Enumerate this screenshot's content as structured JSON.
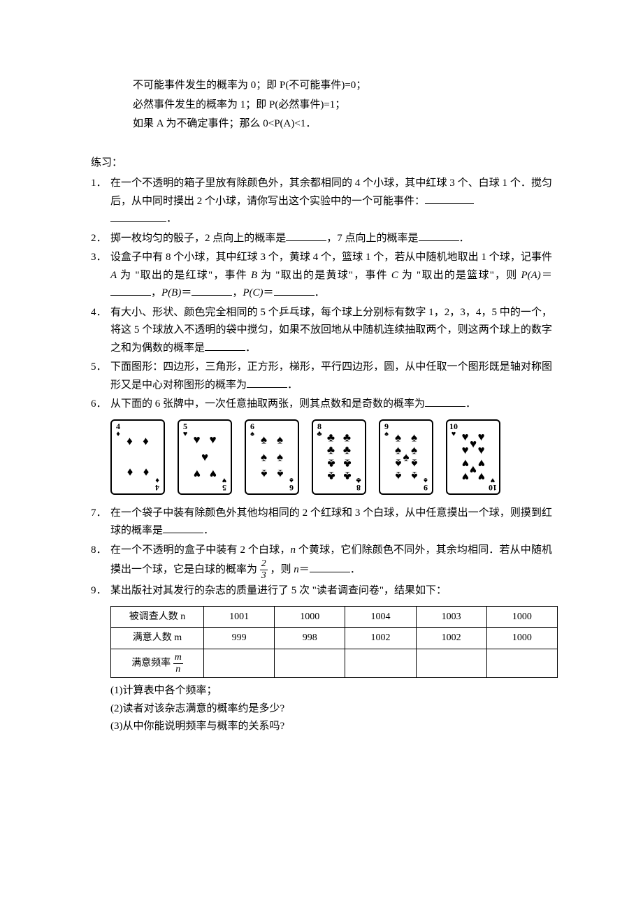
{
  "intro": {
    "line1": "不可能事件发生的概率为 0；即 P(不可能事件)=0；",
    "line2": "必然事件发生的概率为 1；即 P(必然事件)=1；",
    "line3": "如果 A 为不确定事件；那么 0<P(A)<1．"
  },
  "section_label": "练习：",
  "q1a": "在一个不透明的箱子里放有除颜色外，其余都相同的 4 个小球，其中红球 3 个、白球 1 个．搅匀后，从中同时摸出 2 个小球，请你写出这个实验中的一个可能事件：",
  "q1b": "．",
  "q2a": "掷一枚均匀的骰子，2 点向上的概率是",
  "q2b": "，7 点向上的概率是",
  "q2c": "．",
  "q3a": "设盒子中有 8 个小球，其中红球 3 个，黄球 4 个，篮球 1 个，若从中随机地取出 1 个球，记事件 ",
  "q3a_A": "A",
  "q3a2": " 为 \"取出的是红球\"，事件 ",
  "q3a_B": "B",
  "q3a3": " 为 \"取出的是黄球\"，事件 ",
  "q3a_C": "C",
  "q3a4": " 为 \"取出的是篮球\"，则 ",
  "q3_PA": "P(A)",
  "q3_eq": "＝",
  "q3_comma": "，",
  "q3_PB": "P(B)",
  "q3_PC": "P(C)",
  "q3_end": "．",
  "q4a": "有大小、形状、颜色完全相同的 5 个乒乓球，每个球上分别标有数字 1，2，3，4，5 中的一个，将这 5 个球放入不透明的袋中搅匀，如果不放回地从中随机连续抽取两个，则这两个球上的数字之和为偶数的概率是",
  "q4b": "．",
  "q5a": "下面图形：四边形，三角形，正方形，梯形，平行四边形，圆，从中任取一个图形既是轴对称图形又是中心对称图形的概率为",
  "q5b": "．",
  "q6a": "从下面的 6 张牌中，一次任意抽取两张，则其点数和是奇数的概率为",
  "q6b": "．",
  "cards": [
    {
      "value": "4",
      "suit": "♦"
    },
    {
      "value": "5",
      "suit": "♥"
    },
    {
      "value": "6",
      "suit": "♠"
    },
    {
      "value": "8",
      "suit": "♣"
    },
    {
      "value": "9",
      "suit": "♠"
    },
    {
      "value": "10",
      "suit": "♥"
    }
  ],
  "q7a": "在一个袋子中装有除颜色外其他均相同的 2 个红球和 3 个白球，从中任意摸出一个球，则摸到红球的概率是",
  "q7b": "．",
  "q8a": "在一个不透明的盒子中装有 2 个白球，",
  "q8_n": "n",
  "q8a2": " 个黄球，它们除颜色不同外，其余均相同．若从中随机摸出一个球，它是白球的概率为 ",
  "q8_frac_n": "2",
  "q8_frac_d": "3",
  "q8a3": " ，则 ",
  "q8_n2": "n",
  "q8a4": "＝",
  "q8b": "．",
  "q9a": "某出版社对其发行的杂志的质量进行了 5 次 \"读者调查问卷\"，结果如下：",
  "table": {
    "headers": [
      "被调查人数 n",
      "1001",
      "1000",
      "1004",
      "1003",
      "1000"
    ],
    "row2": [
      "满意人数 m",
      "999",
      "998",
      "1002",
      "1002",
      "1000"
    ],
    "row3_label_pre": "满意频率 ",
    "row3_frac_n": "m",
    "row3_frac_d": "n",
    "row3": [
      "",
      "",
      "",
      "",
      ""
    ]
  },
  "q9_sub1": "(1)计算表中各个频率；",
  "q9_sub2": "(2)读者对该杂志满意的概率约是多少?",
  "q9_sub3": "(3)从中你能说明频率与概率的关系吗?",
  "nums": {
    "n1": "1．",
    "n2": "2．",
    "n3": "3．",
    "n4": "4．",
    "n5": "5．",
    "n6": "6．",
    "n7": "7．",
    "n8": "8．",
    "n9": "9．"
  },
  "style": {
    "page_bg": "#ffffff",
    "text_color": "#000000",
    "border_color": "#000000",
    "font_size_body": 15,
    "font_size_table": 14,
    "card": {
      "w": 78,
      "h": 108,
      "border": 2,
      "radius": 6,
      "pip_size": 17
    },
    "pip_layouts": {
      "4": [
        [
          25,
          20,
          false
        ],
        [
          75,
          20,
          false
        ],
        [
          25,
          80,
          true
        ],
        [
          75,
          80,
          true
        ]
      ],
      "5": [
        [
          25,
          18,
          false
        ],
        [
          75,
          18,
          false
        ],
        [
          50,
          50,
          false
        ],
        [
          25,
          82,
          true
        ],
        [
          75,
          82,
          true
        ]
      ],
      "6": [
        [
          25,
          18,
          false
        ],
        [
          75,
          18,
          false
        ],
        [
          25,
          50,
          false
        ],
        [
          75,
          50,
          false
        ],
        [
          25,
          82,
          true
        ],
        [
          75,
          82,
          true
        ]
      ],
      "8": [
        [
          25,
          14,
          false
        ],
        [
          75,
          14,
          false
        ],
        [
          25,
          38,
          false
        ],
        [
          75,
          38,
          false
        ],
        [
          25,
          62,
          true
        ],
        [
          75,
          62,
          true
        ],
        [
          25,
          86,
          true
        ],
        [
          75,
          86,
          true
        ]
      ],
      "9": [
        [
          25,
          14,
          false
        ],
        [
          75,
          14,
          false
        ],
        [
          25,
          38,
          false
        ],
        [
          75,
          38,
          false
        ],
        [
          50,
          50,
          false
        ],
        [
          25,
          62,
          true
        ],
        [
          75,
          62,
          true
        ],
        [
          25,
          86,
          true
        ],
        [
          75,
          86,
          true
        ]
      ],
      "10": [
        [
          25,
          12,
          false
        ],
        [
          75,
          12,
          false
        ],
        [
          50,
          26,
          false
        ],
        [
          25,
          38,
          false
        ],
        [
          75,
          38,
          false
        ],
        [
          25,
          62,
          true
        ],
        [
          75,
          62,
          true
        ],
        [
          50,
          74,
          true
        ],
        [
          25,
          88,
          true
        ],
        [
          75,
          88,
          true
        ]
      ]
    }
  }
}
